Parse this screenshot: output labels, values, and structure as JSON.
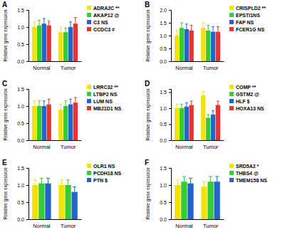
{
  "chart_data": [
    {
      "type": "bar",
      "title": "A",
      "y_label": "Relative gene expression",
      "categories": [
        "Normal",
        "Tumor"
      ],
      "series": [
        {
          "name": "ADRA2C **",
          "color": "#f2e200",
          "values": [
            1.0,
            0.85
          ],
          "errors": [
            0.15,
            0.15
          ]
        },
        {
          "name": "AKAP12 @",
          "color": "#33cc33",
          "values": [
            1.05,
            0.85
          ],
          "errors": [
            0.15,
            0.12
          ]
        },
        {
          "name": "C3 NS",
          "color": "#2266cc",
          "values": [
            1.1,
            1.0
          ],
          "errors": [
            0.15,
            0.15
          ]
        },
        {
          "name": "CCDC3 #",
          "color": "#e8332f",
          "values": [
            1.05,
            1.1
          ],
          "errors": [
            0.12,
            0.18
          ]
        }
      ],
      "ylim": [
        0,
        1.5
      ],
      "yticks": [
        {
          "value": 0,
          "label": "0.0"
        },
        {
          "value": 0.5,
          "label": "0.5"
        },
        {
          "value": 1,
          "label": "1.0"
        },
        {
          "value": 1.5,
          "label": "1.5"
        }
      ]
    },
    {
      "type": "bar",
      "title": "B",
      "y_label": "Relative gene expression",
      "categories": [
        "Normal",
        "Tumor"
      ],
      "series": [
        {
          "name": "CRISPLD2 **",
          "color": "#f2e200",
          "values": [
            1.0,
            1.3
          ],
          "errors": [
            0.2,
            0.2
          ]
        },
        {
          "name": "EPSTI1NS",
          "color": "#33cc33",
          "values": [
            1.3,
            1.2
          ],
          "errors": [
            0.2,
            0.2
          ]
        },
        {
          "name": "FAP NS",
          "color": "#2266cc",
          "values": [
            1.25,
            1.15
          ],
          "errors": [
            0.2,
            0.2
          ]
        },
        {
          "name": "FCER1G NS",
          "color": "#e8332f",
          "values": [
            1.2,
            1.15
          ],
          "errors": [
            0.2,
            0.2
          ]
        }
      ],
      "ylim": [
        0,
        2
      ],
      "yticks": [
        {
          "value": 0,
          "label": "0.0"
        },
        {
          "value": 0.5,
          "label": "0.5"
        },
        {
          "value": 1,
          "label": "1.0"
        },
        {
          "value": 1.5,
          "label": "1.5"
        },
        {
          "value": 2,
          "label": "2.0"
        }
      ]
    },
    {
      "type": "bar",
      "title": "C",
      "y_label": "Relative gene expression",
      "categories": [
        "Normal",
        "Tumor"
      ],
      "series": [
        {
          "name": "LRRC32 **",
          "color": "#f2e200",
          "values": [
            1.0,
            0.9
          ],
          "errors": [
            0.15,
            0.15
          ]
        },
        {
          "name": "LTBP2 NS",
          "color": "#33cc33",
          "values": [
            1.0,
            1.0
          ],
          "errors": [
            0.15,
            0.15
          ]
        },
        {
          "name": "LUM NS",
          "color": "#2266cc",
          "values": [
            1.0,
            1.05
          ],
          "errors": [
            0.15,
            0.15
          ]
        },
        {
          "name": "MB21D1 NS",
          "color": "#e8332f",
          "values": [
            1.05,
            1.1
          ],
          "errors": [
            0.15,
            0.15
          ]
        }
      ],
      "ylim": [
        0,
        1.5
      ],
      "yticks": [
        {
          "value": 0,
          "label": "0.0"
        },
        {
          "value": 0.5,
          "label": "0.5"
        },
        {
          "value": 1,
          "label": "1.0"
        },
        {
          "value": 1.5,
          "label": "1.5"
        }
      ]
    },
    {
      "type": "bar",
      "title": "D",
      "y_label": "Relative gene expression",
      "categories": [
        "Normal",
        "Tumor"
      ],
      "series": [
        {
          "name": "COMP **",
          "color": "#f2e200",
          "values": [
            1.0,
            1.4
          ],
          "errors": [
            0.12,
            0.12
          ]
        },
        {
          "name": "GSTM2 @",
          "color": "#33cc33",
          "values": [
            1.0,
            0.7
          ],
          "errors": [
            0.12,
            0.1
          ]
        },
        {
          "name": "HLF $",
          "color": "#2266cc",
          "values": [
            1.05,
            0.8
          ],
          "errors": [
            0.12,
            0.12
          ]
        },
        {
          "name": "HOXA13 NS",
          "color": "#e8332f",
          "values": [
            1.1,
            1.1
          ],
          "errors": [
            0.12,
            0.12
          ]
        }
      ],
      "ylim": [
        0,
        1.6
      ],
      "yticks": [
        {
          "value": 0,
          "label": "0.0"
        },
        {
          "value": 0.5,
          "label": "0.5"
        },
        {
          "value": 1,
          "label": "1.0"
        },
        {
          "value": 1.5,
          "label": "1.5"
        }
      ]
    },
    {
      "type": "bar",
      "title": "E",
      "y_label": "Relative gene expression",
      "categories": [
        "Normal",
        "Tumor"
      ],
      "series": [
        {
          "name": "OLR1 NS",
          "color": "#f2e200",
          "values": [
            1.0,
            1.0
          ],
          "errors": [
            0.15,
            0.15
          ]
        },
        {
          "name": "PCDH18 NS",
          "color": "#33cc33",
          "values": [
            1.05,
            1.0
          ],
          "errors": [
            0.15,
            0.15
          ]
        },
        {
          "name": "PTN $",
          "color": "#2266cc",
          "values": [
            1.05,
            0.8
          ],
          "errors": [
            0.15,
            0.15
          ]
        }
      ],
      "ylim": [
        0,
        1.5
      ],
      "yticks": [
        {
          "value": 0,
          "label": "0.0"
        },
        {
          "value": 0.5,
          "label": "0.5"
        },
        {
          "value": 1,
          "label": "1.0"
        },
        {
          "value": 1.5,
          "label": "1.5"
        }
      ]
    },
    {
      "type": "bar",
      "title": "F",
      "y_label": "Relative gene expression",
      "categories": [
        "Normal",
        "Tumor"
      ],
      "series": [
        {
          "name": "SRD5A2 *",
          "color": "#f2e200",
          "values": [
            1.0,
            0.95
          ],
          "errors": [
            0.15,
            0.15
          ]
        },
        {
          "name": "THBS4 @",
          "color": "#33cc33",
          "values": [
            1.1,
            1.1
          ],
          "errors": [
            0.15,
            0.15
          ]
        },
        {
          "name": "TMEM158 NS",
          "color": "#2266cc",
          "values": [
            1.05,
            1.1
          ],
          "errors": [
            0.15,
            0.15
          ]
        }
      ],
      "ylim": [
        0,
        1.5
      ],
      "yticks": [
        {
          "value": 0,
          "label": "0.0"
        },
        {
          "value": 0.5,
          "label": "0.5"
        },
        {
          "value": 1,
          "label": "1.0"
        },
        {
          "value": 1.5,
          "label": "1.5"
        }
      ]
    }
  ]
}
